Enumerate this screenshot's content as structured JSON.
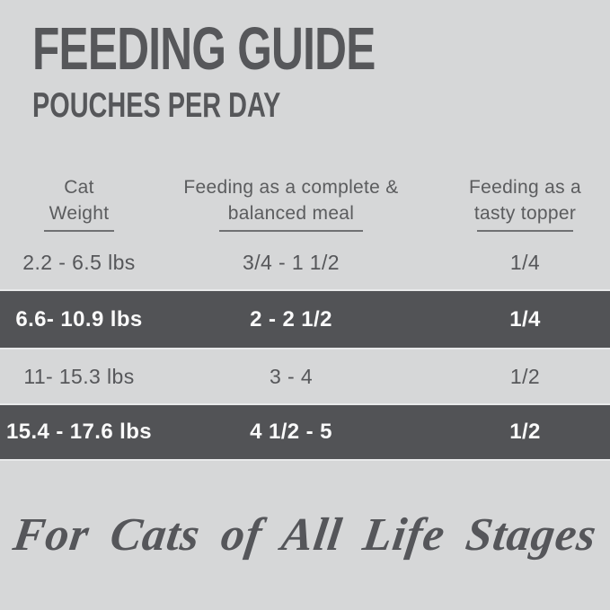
{
  "header": {
    "title": "FEEDING GUIDE",
    "subtitle": "POUCHES PER DAY"
  },
  "table": {
    "columns": [
      {
        "line1": "Cat",
        "line2": "Weight"
      },
      {
        "line1": "Feeding as a complete &",
        "line2": "balanced meal"
      },
      {
        "line1": "Feeding as a",
        "line2": "tasty topper"
      }
    ],
    "rows": [
      {
        "weight": "2.2 - 6.5 lbs",
        "complete_meal": "3/4 - 1 1/2",
        "tasty_topper": "1/4",
        "highlighted": false
      },
      {
        "weight": "6.6- 10.9 lbs",
        "complete_meal": "2 - 2 1/2",
        "tasty_topper": "1/4",
        "highlighted": true
      },
      {
        "weight": "11- 15.3 lbs",
        "complete_meal": "3 - 4",
        "tasty_topper": "1/2",
        "highlighted": false
      },
      {
        "weight": "15.4 - 17.6 lbs",
        "complete_meal": "4 1/2 - 5",
        "tasty_topper": "1/2",
        "highlighted": true
      }
    ]
  },
  "footer": {
    "tagline": "For Cats of All Life Stages"
  },
  "colors": {
    "background": "#d6d7d8",
    "heading_text": "#56575a",
    "table_text": "#56575a",
    "highlight_band": "#525356",
    "highlight_text": "#fafafa",
    "underline": "#6f7072"
  }
}
